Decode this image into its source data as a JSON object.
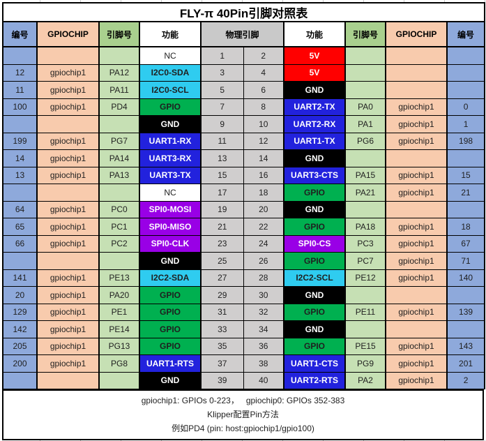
{
  "table": {
    "title": "FLY-π 40Pin引脚对照表",
    "headers": [
      "编号",
      "GPIOCHIP",
      "引脚号",
      "功能",
      "物理引脚",
      "功能",
      "引脚号",
      "GPIOCHIP",
      "编号"
    ]
  },
  "rows": [
    {
      "l_num": "",
      "l_chip": "",
      "l_pin": "",
      "l_func": "NC",
      "l_type": "nc",
      "p1": "1",
      "p2": "2",
      "r_func": "5V",
      "r_type": "5v",
      "r_pin": "",
      "r_chip": "",
      "r_num": ""
    },
    {
      "l_num": "12",
      "l_chip": "gpiochip1",
      "l_pin": "PA12",
      "l_func": "I2C0-SDA",
      "l_type": "i2c",
      "p1": "3",
      "p2": "4",
      "r_func": "5V",
      "r_type": "5v",
      "r_pin": "",
      "r_chip": "",
      "r_num": ""
    },
    {
      "l_num": "11",
      "l_chip": "gpiochip1",
      "l_pin": "PA11",
      "l_func": "I2C0-SCL",
      "l_type": "i2c",
      "p1": "5",
      "p2": "6",
      "r_func": "GND",
      "r_type": "gnd",
      "r_pin": "",
      "r_chip": "",
      "r_num": ""
    },
    {
      "l_num": "100",
      "l_chip": "gpiochip1",
      "l_pin": "PD4",
      "l_func": "GPIO",
      "l_type": "gpio",
      "p1": "7",
      "p2": "8",
      "r_func": "UART2-TX",
      "r_type": "uart",
      "r_pin": "PA0",
      "r_chip": "gpiochip1",
      "r_num": "0"
    },
    {
      "l_num": "",
      "l_chip": "",
      "l_pin": "",
      "l_func": "GND",
      "l_type": "gnd",
      "p1": "9",
      "p2": "10",
      "r_func": "UART2-RX",
      "r_type": "uart",
      "r_pin": "PA1",
      "r_chip": "gpiochip1",
      "r_num": "1"
    },
    {
      "l_num": "199",
      "l_chip": "gpiochip1",
      "l_pin": "PG7",
      "l_func": "UART1-RX",
      "l_type": "uart",
      "p1": "11",
      "p2": "12",
      "r_func": "UART1-TX",
      "r_type": "uart",
      "r_pin": "PG6",
      "r_chip": "gpiochip1",
      "r_num": "198"
    },
    {
      "l_num": "14",
      "l_chip": "gpiochip1",
      "l_pin": "PA14",
      "l_func": "UART3-RX",
      "l_type": "uart",
      "p1": "13",
      "p2": "14",
      "r_func": "GND",
      "r_type": "gnd",
      "r_pin": "",
      "r_chip": "",
      "r_num": ""
    },
    {
      "l_num": "13",
      "l_chip": "gpiochip1",
      "l_pin": "PA13",
      "l_func": "UART3-TX",
      "l_type": "uart",
      "p1": "15",
      "p2": "16",
      "r_func": "UART3-CTS",
      "r_type": "uart",
      "r_pin": "PA15",
      "r_chip": "gpiochip1",
      "r_num": "15"
    },
    {
      "l_num": "",
      "l_chip": "",
      "l_pin": "",
      "l_func": "NC",
      "l_type": "nc",
      "p1": "17",
      "p2": "18",
      "r_func": "GPIO",
      "r_type": "gpio",
      "r_pin": "PA21",
      "r_chip": "gpiochip1",
      "r_num": "21"
    },
    {
      "l_num": "64",
      "l_chip": "gpiochip1",
      "l_pin": "PC0",
      "l_func": "SPI0-MOSI",
      "l_type": "spi",
      "p1": "19",
      "p2": "20",
      "r_func": "GND",
      "r_type": "gnd",
      "r_pin": "",
      "r_chip": "",
      "r_num": ""
    },
    {
      "l_num": "65",
      "l_chip": "gpiochip1",
      "l_pin": "PC1",
      "l_func": "SPI0-MISO",
      "l_type": "spi",
      "p1": "21",
      "p2": "22",
      "r_func": "GPIO",
      "r_type": "gpio",
      "r_pin": "PA18",
      "r_chip": "gpiochip1",
      "r_num": "18"
    },
    {
      "l_num": "66",
      "l_chip": "gpiochip1",
      "l_pin": "PC2",
      "l_func": "SPI0-CLK",
      "l_type": "spi",
      "p1": "23",
      "p2": "24",
      "r_func": "SPI0-CS",
      "r_type": "spi",
      "r_pin": "PC3",
      "r_chip": "gpiochip1",
      "r_num": "67"
    },
    {
      "l_num": "",
      "l_chip": "",
      "l_pin": "",
      "l_func": "GND",
      "l_type": "gnd",
      "p1": "25",
      "p2": "26",
      "r_func": "GPIO",
      "r_type": "gpio",
      "r_pin": "PC7",
      "r_chip": "gpiochip1",
      "r_num": "71"
    },
    {
      "l_num": "141",
      "l_chip": "gpiochip1",
      "l_pin": "PE13",
      "l_func": "I2C2-SDA",
      "l_type": "i2c",
      "p1": "27",
      "p2": "28",
      "r_func": "I2C2-SCL",
      "r_type": "i2c",
      "r_pin": "PE12",
      "r_chip": "gpiochip1",
      "r_num": "140"
    },
    {
      "l_num": "20",
      "l_chip": "gpiochip1",
      "l_pin": "PA20",
      "l_func": "GPIO",
      "l_type": "gpio",
      "p1": "29",
      "p2": "30",
      "r_func": "GND",
      "r_type": "gnd",
      "r_pin": "",
      "r_chip": "",
      "r_num": ""
    },
    {
      "l_num": "129",
      "l_chip": "gpiochip1",
      "l_pin": "PE1",
      "l_func": "GPIO",
      "l_type": "gpio",
      "p1": "31",
      "p2": "32",
      "r_func": "GPIO",
      "r_type": "gpio",
      "r_pin": "PE11",
      "r_chip": "gpiochip1",
      "r_num": "139"
    },
    {
      "l_num": "142",
      "l_chip": "gpiochip1",
      "l_pin": "PE14",
      "l_func": "GPIO",
      "l_type": "gpio",
      "p1": "33",
      "p2": "34",
      "r_func": "GND",
      "r_type": "gnd",
      "r_pin": "",
      "r_chip": "",
      "r_num": ""
    },
    {
      "l_num": "205",
      "l_chip": "gpiochip1",
      "l_pin": "PG13",
      "l_func": "GPIO",
      "l_type": "gpio",
      "p1": "35",
      "p2": "36",
      "r_func": "GPIO",
      "r_type": "gpio",
      "r_pin": "PE15",
      "r_chip": "gpiochip1",
      "r_num": "143"
    },
    {
      "l_num": "200",
      "l_chip": "gpiochip1",
      "l_pin": "PG8",
      "l_func": "UART1-RTS",
      "l_type": "uart",
      "p1": "37",
      "p2": "38",
      "r_func": "UART1-CTS",
      "r_type": "uart",
      "r_pin": "PG9",
      "r_chip": "gpiochip1",
      "r_num": "201"
    },
    {
      "l_num": "",
      "l_chip": "",
      "l_pin": "",
      "l_func": "GND",
      "l_type": "gnd",
      "p1": "39",
      "p2": "40",
      "r_func": "UART2-RTS",
      "r_type": "uart",
      "r_pin": "PA2",
      "r_chip": "gpiochip1",
      "r_num": "2"
    }
  ],
  "footer": {
    "lines": [
      "gpiochip1: GPIOs 0-223，   gpiochip0: GPIOs 352-383",
      "Klipper配置Pin方法",
      "例如PD4 (pin: host:gpiochip1/gpio100)"
    ]
  },
  "colors": {
    "border": "#000000",
    "header_num": "#8EA9DB",
    "header_chip": "#F8CBAD",
    "header_pin": "#A9D08E",
    "header_func": "#FFFFFF",
    "header_phys": "#C9C9C9",
    "cell_num": "#8EA9DB",
    "cell_chip": "#F8CBAD",
    "cell_pin": "#C6E0B4",
    "cell_phys": "#D0CECE",
    "func_5v": "#FF0000",
    "func_gnd": "#000000",
    "func_uart": "#2222DD",
    "func_i2c": "#2FCCF0",
    "func_spi": "#9900E6",
    "func_gpio": "#00B050",
    "func_nc": "#FFFFFF"
  }
}
